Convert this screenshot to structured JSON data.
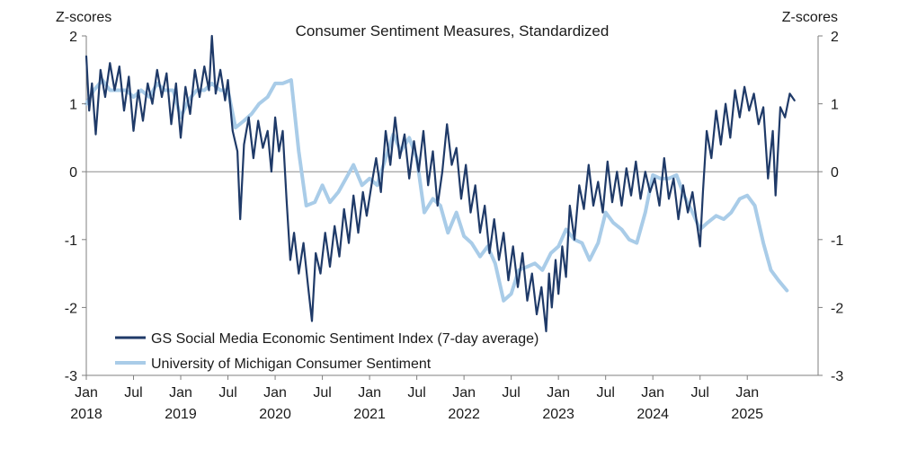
{
  "chart_data": {
    "type": "line",
    "title": "Consumer Sentiment Measures, Standardized",
    "ylabel_left": "Z-scores",
    "ylabel_right": "Z-scores",
    "ylim": [
      -3,
      2
    ],
    "yticks": [
      2,
      1,
      0,
      -1,
      -2,
      -3
    ],
    "xlim": [
      2018.0,
      2025.75
    ],
    "xticks": [
      {
        "x": 2018.0,
        "month": "Jan",
        "year": "2018"
      },
      {
        "x": 2018.5,
        "month": "Jul",
        "year": ""
      },
      {
        "x": 2019.0,
        "month": "Jan",
        "year": "2019"
      },
      {
        "x": 2019.5,
        "month": "Jul",
        "year": ""
      },
      {
        "x": 2020.0,
        "month": "Jan",
        "year": "2020"
      },
      {
        "x": 2020.5,
        "month": "Jul",
        "year": ""
      },
      {
        "x": 2021.0,
        "month": "Jan",
        "year": "2021"
      },
      {
        "x": 2021.5,
        "month": "Jul",
        "year": ""
      },
      {
        "x": 2022.0,
        "month": "Jan",
        "year": "2022"
      },
      {
        "x": 2022.5,
        "month": "Jul",
        "year": ""
      },
      {
        "x": 2023.0,
        "month": "Jan",
        "year": "2023"
      },
      {
        "x": 2023.5,
        "month": "Jul",
        "year": ""
      },
      {
        "x": 2024.0,
        "month": "Jan",
        "year": "2024"
      },
      {
        "x": 2024.5,
        "month": "Jul",
        "year": ""
      },
      {
        "x": 2025.0,
        "month": "Jan",
        "year": "2025"
      }
    ],
    "zero_line": true,
    "legend_position": "bottom-left",
    "series": [
      {
        "name": "GS Social Media Economic Sentiment Index (7-day average)",
        "color": "#1f3a68",
        "points": [
          [
            2018.0,
            1.7
          ],
          [
            2018.03,
            0.9
          ],
          [
            2018.06,
            1.3
          ],
          [
            2018.1,
            0.55
          ],
          [
            2018.15,
            1.5
          ],
          [
            2018.2,
            1.1
          ],
          [
            2018.25,
            1.6
          ],
          [
            2018.3,
            1.2
          ],
          [
            2018.35,
            1.55
          ],
          [
            2018.4,
            0.9
          ],
          [
            2018.45,
            1.4
          ],
          [
            2018.5,
            0.6
          ],
          [
            2018.55,
            1.2
          ],
          [
            2018.6,
            0.75
          ],
          [
            2018.65,
            1.3
          ],
          [
            2018.7,
            1.0
          ],
          [
            2018.75,
            1.5
          ],
          [
            2018.8,
            1.1
          ],
          [
            2018.85,
            1.45
          ],
          [
            2018.9,
            0.7
          ],
          [
            2018.95,
            1.3
          ],
          [
            2019.0,
            0.5
          ],
          [
            2019.05,
            1.25
          ],
          [
            2019.1,
            0.85
          ],
          [
            2019.15,
            1.5
          ],
          [
            2019.2,
            1.1
          ],
          [
            2019.25,
            1.55
          ],
          [
            2019.3,
            1.2
          ],
          [
            2019.33,
            2.0
          ],
          [
            2019.37,
            1.15
          ],
          [
            2019.42,
            1.5
          ],
          [
            2019.47,
            1.05
          ],
          [
            2019.5,
            1.35
          ],
          [
            2019.55,
            0.6
          ],
          [
            2019.6,
            0.3
          ],
          [
            2019.63,
            -0.7
          ],
          [
            2019.67,
            0.4
          ],
          [
            2019.72,
            0.8
          ],
          [
            2019.77,
            0.2
          ],
          [
            2019.82,
            0.75
          ],
          [
            2019.87,
            0.35
          ],
          [
            2019.92,
            0.6
          ],
          [
            2019.96,
            0.0
          ],
          [
            2020.0,
            0.8
          ],
          [
            2020.04,
            0.3
          ],
          [
            2020.08,
            0.6
          ],
          [
            2020.12,
            -0.4
          ],
          [
            2020.16,
            -1.3
          ],
          [
            2020.2,
            -0.9
          ],
          [
            2020.25,
            -1.5
          ],
          [
            2020.3,
            -1.05
          ],
          [
            2020.35,
            -1.7
          ],
          [
            2020.39,
            -2.2
          ],
          [
            2020.43,
            -1.2
          ],
          [
            2020.48,
            -1.5
          ],
          [
            2020.53,
            -0.9
          ],
          [
            2020.58,
            -1.4
          ],
          [
            2020.63,
            -0.8
          ],
          [
            2020.68,
            -1.25
          ],
          [
            2020.73,
            -0.55
          ],
          [
            2020.78,
            -1.05
          ],
          [
            2020.83,
            -0.35
          ],
          [
            2020.88,
            -0.9
          ],
          [
            2020.93,
            -0.3
          ],
          [
            2020.97,
            -0.65
          ],
          [
            2021.02,
            -0.2
          ],
          [
            2021.07,
            0.2
          ],
          [
            2021.12,
            -0.3
          ],
          [
            2021.17,
            0.6
          ],
          [
            2021.22,
            0.1
          ],
          [
            2021.27,
            0.8
          ],
          [
            2021.32,
            0.2
          ],
          [
            2021.37,
            0.55
          ],
          [
            2021.42,
            -0.1
          ],
          [
            2021.47,
            0.45
          ],
          [
            2021.52,
            0.0
          ],
          [
            2021.57,
            0.6
          ],
          [
            2021.62,
            -0.2
          ],
          [
            2021.67,
            0.3
          ],
          [
            2021.72,
            -0.5
          ],
          [
            2021.77,
            0.0
          ],
          [
            2021.82,
            0.7
          ],
          [
            2021.87,
            0.1
          ],
          [
            2021.92,
            0.35
          ],
          [
            2021.97,
            -0.4
          ],
          [
            2022.02,
            0.1
          ],
          [
            2022.07,
            -0.6
          ],
          [
            2022.12,
            -0.2
          ],
          [
            2022.17,
            -0.9
          ],
          [
            2022.22,
            -0.5
          ],
          [
            2022.27,
            -1.2
          ],
          [
            2022.32,
            -0.7
          ],
          [
            2022.37,
            -1.3
          ],
          [
            2022.42,
            -0.9
          ],
          [
            2022.47,
            -1.6
          ],
          [
            2022.52,
            -1.1
          ],
          [
            2022.57,
            -1.7
          ],
          [
            2022.62,
            -1.2
          ],
          [
            2022.67,
            -1.9
          ],
          [
            2022.72,
            -1.5
          ],
          [
            2022.77,
            -2.1
          ],
          [
            2022.82,
            -1.7
          ],
          [
            2022.87,
            -2.35
          ],
          [
            2022.9,
            -1.5
          ],
          [
            2022.93,
            -2.0
          ],
          [
            2022.97,
            -1.3
          ],
          [
            2023.0,
            -1.8
          ],
          [
            2023.04,
            -1.1
          ],
          [
            2023.08,
            -1.55
          ],
          [
            2023.12,
            -0.5
          ],
          [
            2023.17,
            -1.0
          ],
          [
            2023.22,
            -0.2
          ],
          [
            2023.27,
            -0.55
          ],
          [
            2023.32,
            0.1
          ],
          [
            2023.37,
            -0.5
          ],
          [
            2023.42,
            -0.15
          ],
          [
            2023.47,
            -0.6
          ],
          [
            2023.52,
            0.15
          ],
          [
            2023.57,
            -0.45
          ],
          [
            2023.62,
            0.0
          ],
          [
            2023.67,
            -0.5
          ],
          [
            2023.72,
            0.05
          ],
          [
            2023.77,
            -0.35
          ],
          [
            2023.82,
            0.15
          ],
          [
            2023.87,
            -0.4
          ],
          [
            2023.92,
            0.0
          ],
          [
            2023.97,
            -0.3
          ],
          [
            2024.02,
            -0.1
          ],
          [
            2024.07,
            -0.5
          ],
          [
            2024.12,
            0.2
          ],
          [
            2024.17,
            -0.4
          ],
          [
            2024.22,
            -0.1
          ],
          [
            2024.27,
            -0.7
          ],
          [
            2024.32,
            -0.2
          ],
          [
            2024.37,
            -0.6
          ],
          [
            2024.42,
            -0.3
          ],
          [
            2024.47,
            -0.8
          ],
          [
            2024.5,
            -1.1
          ],
          [
            2024.53,
            -0.3
          ],
          [
            2024.57,
            0.6
          ],
          [
            2024.62,
            0.2
          ],
          [
            2024.67,
            0.9
          ],
          [
            2024.72,
            0.4
          ],
          [
            2024.77,
            1.0
          ],
          [
            2024.82,
            0.5
          ],
          [
            2024.87,
            1.2
          ],
          [
            2024.92,
            0.8
          ],
          [
            2024.97,
            1.25
          ],
          [
            2025.02,
            0.9
          ],
          [
            2025.07,
            1.15
          ],
          [
            2025.12,
            0.7
          ],
          [
            2025.17,
            0.95
          ],
          [
            2025.22,
            -0.1
          ],
          [
            2025.27,
            0.6
          ],
          [
            2025.3,
            -0.35
          ],
          [
            2025.35,
            0.95
          ],
          [
            2025.4,
            0.8
          ],
          [
            2025.45,
            1.15
          ],
          [
            2025.5,
            1.05
          ]
        ]
      },
      {
        "name": "University of Michigan Consumer Sentiment",
        "color": "#a9cce8",
        "points": [
          [
            2018.0,
            1.0
          ],
          [
            2018.08,
            1.2
          ],
          [
            2018.17,
            1.35
          ],
          [
            2018.25,
            1.2
          ],
          [
            2018.33,
            1.2
          ],
          [
            2018.42,
            1.2
          ],
          [
            2018.5,
            1.1
          ],
          [
            2018.58,
            1.2
          ],
          [
            2018.67,
            1.1
          ],
          [
            2018.75,
            1.3
          ],
          [
            2018.83,
            1.2
          ],
          [
            2018.92,
            1.2
          ],
          [
            2019.0,
            0.8
          ],
          [
            2019.08,
            1.05
          ],
          [
            2019.17,
            1.2
          ],
          [
            2019.25,
            1.2
          ],
          [
            2019.33,
            1.3
          ],
          [
            2019.42,
            1.2
          ],
          [
            2019.5,
            1.2
          ],
          [
            2019.58,
            0.65
          ],
          [
            2019.67,
            0.75
          ],
          [
            2019.75,
            0.85
          ],
          [
            2019.83,
            1.0
          ],
          [
            2019.92,
            1.1
          ],
          [
            2020.0,
            1.3
          ],
          [
            2020.08,
            1.3
          ],
          [
            2020.17,
            1.35
          ],
          [
            2020.25,
            0.3
          ],
          [
            2020.33,
            -0.5
          ],
          [
            2020.42,
            -0.45
          ],
          [
            2020.5,
            -0.2
          ],
          [
            2020.58,
            -0.45
          ],
          [
            2020.67,
            -0.3
          ],
          [
            2020.75,
            -0.1
          ],
          [
            2020.83,
            0.1
          ],
          [
            2020.92,
            -0.2
          ],
          [
            2021.0,
            -0.1
          ],
          [
            2021.08,
            -0.2
          ],
          [
            2021.17,
            0.2
          ],
          [
            2021.25,
            0.55
          ],
          [
            2021.33,
            0.3
          ],
          [
            2021.42,
            0.5
          ],
          [
            2021.5,
            0.2
          ],
          [
            2021.58,
            -0.6
          ],
          [
            2021.67,
            -0.4
          ],
          [
            2021.75,
            -0.5
          ],
          [
            2021.83,
            -0.9
          ],
          [
            2021.92,
            -0.6
          ],
          [
            2022.0,
            -0.95
          ],
          [
            2022.08,
            -1.05
          ],
          [
            2022.17,
            -1.25
          ],
          [
            2022.25,
            -1.1
          ],
          [
            2022.33,
            -1.35
          ],
          [
            2022.42,
            -1.9
          ],
          [
            2022.5,
            -1.8
          ],
          [
            2022.58,
            -1.45
          ],
          [
            2022.67,
            -1.4
          ],
          [
            2022.75,
            -1.35
          ],
          [
            2022.83,
            -1.45
          ],
          [
            2022.92,
            -1.2
          ],
          [
            2023.0,
            -1.1
          ],
          [
            2023.08,
            -0.85
          ],
          [
            2023.17,
            -1.0
          ],
          [
            2023.25,
            -1.05
          ],
          [
            2023.33,
            -1.3
          ],
          [
            2023.42,
            -1.05
          ],
          [
            2023.5,
            -0.6
          ],
          [
            2023.58,
            -0.75
          ],
          [
            2023.67,
            -0.85
          ],
          [
            2023.75,
            -1.0
          ],
          [
            2023.83,
            -1.05
          ],
          [
            2023.92,
            -0.6
          ],
          [
            2024.0,
            -0.05
          ],
          [
            2024.08,
            -0.1
          ],
          [
            2024.17,
            -0.1
          ],
          [
            2024.25,
            -0.05
          ],
          [
            2024.33,
            -0.35
          ],
          [
            2024.42,
            -0.6
          ],
          [
            2024.5,
            -0.85
          ],
          [
            2024.58,
            -0.75
          ],
          [
            2024.67,
            -0.65
          ],
          [
            2024.75,
            -0.7
          ],
          [
            2024.83,
            -0.6
          ],
          [
            2024.92,
            -0.4
          ],
          [
            2025.0,
            -0.35
          ],
          [
            2025.08,
            -0.5
          ],
          [
            2025.17,
            -1.05
          ],
          [
            2025.25,
            -1.45
          ],
          [
            2025.33,
            -1.6
          ],
          [
            2025.42,
            -1.75
          ]
        ]
      }
    ]
  }
}
